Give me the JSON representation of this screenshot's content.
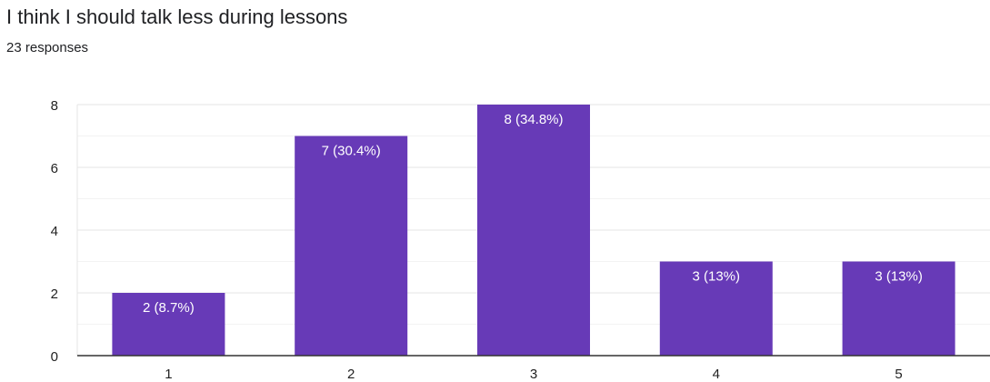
{
  "header": {
    "title": "I think I should talk less during lessons",
    "subtitle": "23 responses"
  },
  "colors": {
    "bar": "#673ab7",
    "grid_major": "#e6e6e6",
    "grid_minor": "#f3f3f3",
    "baseline": "#333333"
  },
  "chart_data": {
    "type": "bar",
    "title": "I think I should talk less during lessons",
    "subtitle": "23 responses",
    "categories": [
      "1",
      "2",
      "3",
      "4",
      "5"
    ],
    "values": [
      2,
      7,
      8,
      3,
      3
    ],
    "data_labels": [
      "2 (8.7%)",
      "7 (30.4%)",
      "8 (34.8%)",
      "3 (13%)",
      "3 (13%)"
    ],
    "xlabel": "",
    "ylabel": "",
    "ylim": [
      0,
      8
    ],
    "yticks": [
      0,
      2,
      4,
      6,
      8
    ],
    "grid": true,
    "legend": "none"
  }
}
